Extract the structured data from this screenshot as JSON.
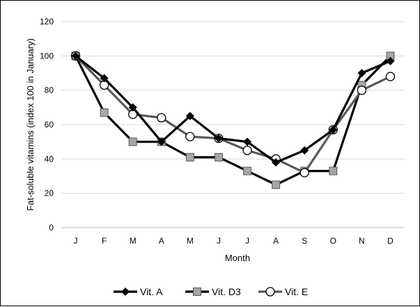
{
  "chart_data": {
    "type": "line",
    "xlabel": "Month",
    "ylabel": "Fat-soluble vitamins (index 100 in January)",
    "categories": [
      "J",
      "F",
      "M",
      "A",
      "M",
      "J",
      "J",
      "A",
      "S",
      "O",
      "N",
      "D"
    ],
    "ylim": [
      0,
      120
    ],
    "yticks": [
      0,
      20,
      40,
      60,
      80,
      100,
      120
    ],
    "grid": "horizontal",
    "legend_position": "bottom",
    "series": [
      {
        "name": "Vit. A",
        "color": "#000000",
        "marker": "diamond-filled",
        "values": [
          100,
          87,
          70,
          50,
          65,
          52,
          50,
          38,
          45,
          57,
          90,
          97
        ]
      },
      {
        "name": "Vit. D3",
        "color": "#000000",
        "marker": "square-gray",
        "values": [
          100,
          67,
          50,
          50,
          41,
          41,
          33,
          25,
          33,
          33,
          83,
          100
        ]
      },
      {
        "name": "Vit. E",
        "color": "#595959",
        "marker": "circle-open",
        "values": [
          100,
          83,
          66,
          64,
          53,
          52,
          45,
          40,
          32,
          57,
          80,
          88
        ]
      }
    ]
  }
}
